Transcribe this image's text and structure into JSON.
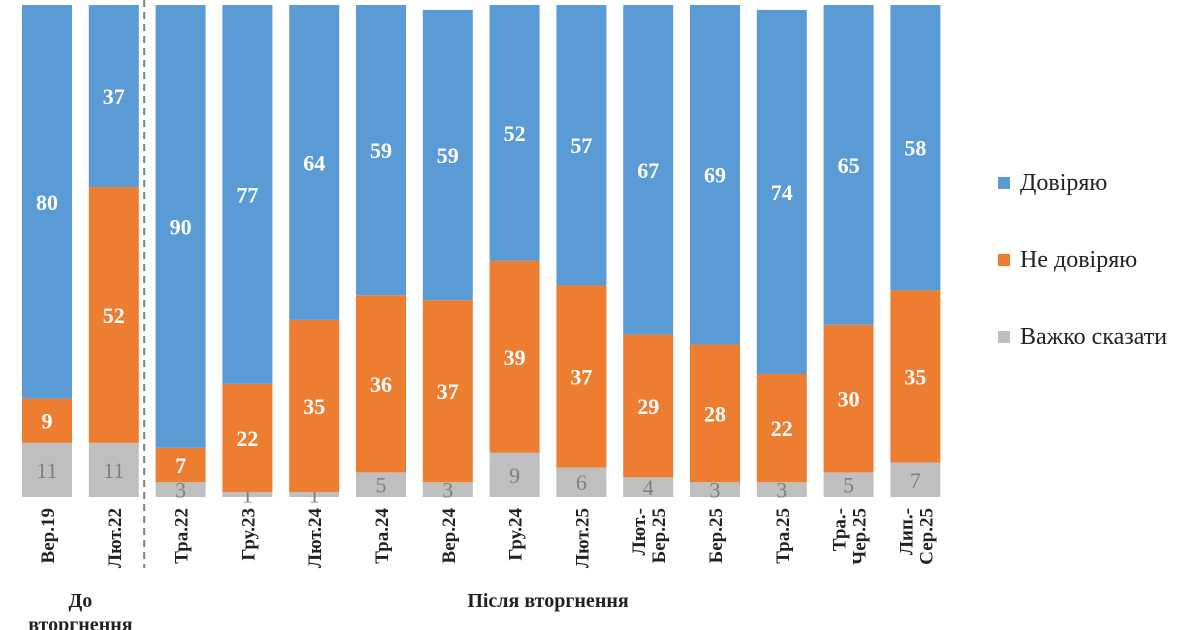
{
  "chart_data": {
    "type": "stacked-bar",
    "categories": [
      "Вер.19",
      "Лют.22",
      "Тра.22",
      "Гру.23",
      "Лют.24",
      "Тра.24",
      "Вер.24",
      "Гру.24",
      "Лют.25",
      "Лют.-\nБер.25",
      "Бер.25",
      "Тра.25",
      "Тра.-\nЧер.25",
      "Лип.-\nСер.25"
    ],
    "series": [
      {
        "name": "Важко сказати",
        "color": "#bfbfbf",
        "label_color": "#7f7f7f",
        "values": [
          11,
          11,
          3,
          1,
          1,
          5,
          3,
          9,
          6,
          4,
          3,
          3,
          5,
          7
        ]
      },
      {
        "name": "Не довіряю",
        "color": "#ed7d31",
        "label_color": "#ffffff",
        "values": [
          9,
          52,
          7,
          22,
          35,
          36,
          37,
          39,
          37,
          29,
          28,
          22,
          30,
          35
        ]
      },
      {
        "name": "Довіряю",
        "color": "#5b9bd5",
        "label_color": "#ffffff",
        "values": [
          80,
          37,
          90,
          77,
          64,
          59,
          59,
          52,
          57,
          67,
          69,
          74,
          65,
          58
        ]
      }
    ],
    "legend_order": [
      "Довіряю",
      "Не довіряю",
      "Важко сказати"
    ],
    "legend_position": "right",
    "ylim": [
      0,
      100
    ],
    "groups": [
      {
        "label": "До\nвторгнення",
        "from": 0,
        "to": 1
      },
      {
        "label": "Після вторгнення",
        "from": 2,
        "to": 13
      }
    ],
    "divider_after_index": 1,
    "grid": false
  }
}
